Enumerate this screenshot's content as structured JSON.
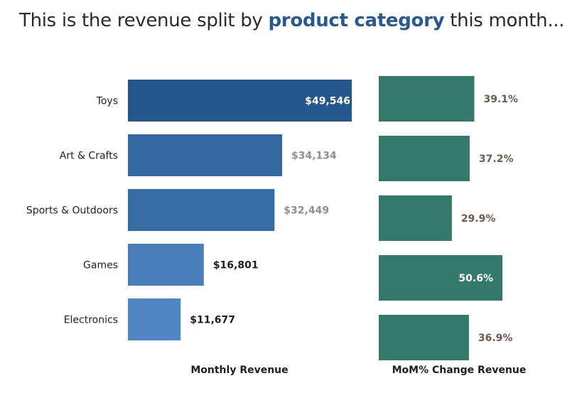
{
  "headline": {
    "prefix": "This is the revenue split by ",
    "highlight": "product category",
    "suffix": " this month..."
  },
  "chart_data": [
    {
      "type": "bar",
      "orientation": "horizontal",
      "xlabel": "Monthly Revenue",
      "categories": [
        "Toys",
        "Art & Crafts",
        "Sports & Outdoors",
        "Games",
        "Electronics"
      ],
      "values": [
        49546,
        34134,
        32449,
        16801,
        11677
      ],
      "value_labels": [
        "$49,546",
        "$34,134",
        "$32,449",
        "$16,801",
        "$11,677"
      ],
      "bar_colors": [
        "#24578c",
        "#3568a1",
        "#366ca4",
        "#4a7eba",
        "#5086c4"
      ],
      "label_colors": [
        "#ffffff",
        "#8f8f8f",
        "#8f8f8f",
        "#1e1e1e",
        "#1e1e1e"
      ],
      "label_inside": [
        true,
        false,
        false,
        false,
        false
      ],
      "xlim": [
        0,
        49546
      ],
      "grid": false
    },
    {
      "type": "bar",
      "orientation": "horizontal",
      "xlabel": "MoM% Change Revenue",
      "categories": [
        "Toys",
        "Art & Crafts",
        "Sports & Outdoors",
        "Games",
        "Electronics"
      ],
      "values": [
        39.1,
        37.2,
        29.9,
        50.6,
        36.9
      ],
      "value_labels": [
        "39.1%",
        "37.2%",
        "29.9%",
        "50.6%",
        "36.9%"
      ],
      "bar_color": "#35786c",
      "label_colors": [
        "#6b5a50",
        "#6b5a50",
        "#6b5a50",
        "#ffffff",
        "#6b5a50"
      ],
      "label_inside": [
        false,
        false,
        false,
        true,
        false
      ],
      "xlim": [
        0,
        50.6
      ],
      "grid": false
    }
  ]
}
